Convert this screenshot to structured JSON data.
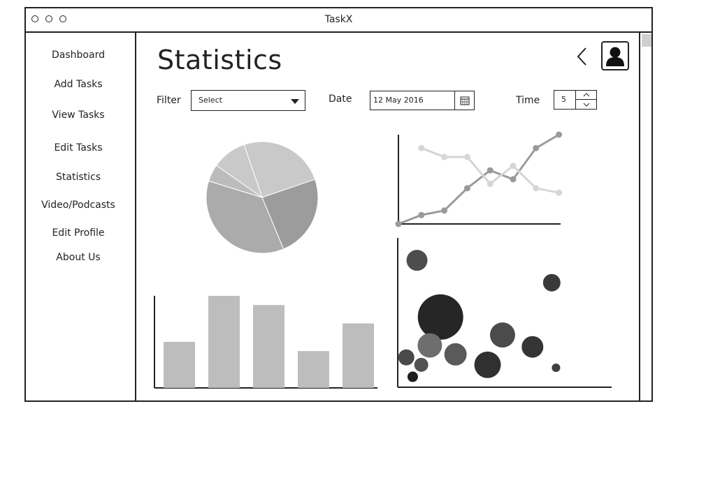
{
  "window": {
    "title": "TaskX"
  },
  "sidebar": {
    "items": [
      {
        "label": "Dashboard"
      },
      {
        "label": "Add Tasks"
      },
      {
        "label": "View Tasks"
      },
      {
        "label": "Edit Tasks"
      },
      {
        "label": "Statistics"
      },
      {
        "label": "Video/Podcasts"
      },
      {
        "label": "Edit Profile"
      },
      {
        "label": "About Us"
      }
    ]
  },
  "main": {
    "title": "Statistics",
    "filter": {
      "label": "Filter",
      "value": "Select"
    },
    "date": {
      "label": "Date",
      "value": "12 May 2016"
    },
    "time": {
      "label": "Time",
      "value": "5"
    }
  },
  "icons": {
    "back": "chevron-left-icon",
    "avatar": "user-icon",
    "calendar": "calendar-icon",
    "up": "caret-up-icon",
    "down": "caret-down-icon"
  },
  "colors": {
    "pie": [
      "#c9c9c9",
      "#9c9c9c",
      "#ababab",
      "#bcbcbc"
    ],
    "bar": "#bdbdbd",
    "line1": "#9a9a9a",
    "line2": "#d6d6d6"
  },
  "chart_data": [
    {
      "type": "pie",
      "values": [
        25,
        24,
        36,
        5,
        10
      ]
    },
    {
      "type": "line",
      "series": [
        {
          "values": [
            0,
            4,
            6,
            16,
            24,
            20,
            34,
            40
          ]
        },
        {
          "values": [
            34,
            30,
            30,
            18,
            26,
            16,
            14
          ]
        }
      ]
    },
    {
      "type": "bar",
      "values": [
        50,
        100,
        90,
        40,
        70
      ],
      "ylim": [
        0,
        100
      ]
    },
    {
      "type": "scatter",
      "points": [
        {
          "x": 9,
          "y": 85,
          "r": 3
        },
        {
          "x": 72,
          "y": 70,
          "r": 2.5
        },
        {
          "x": 20,
          "y": 47,
          "r": 6.5
        },
        {
          "x": 15,
          "y": 28,
          "r": 3.5
        },
        {
          "x": 27,
          "y": 22,
          "r": 3.2
        },
        {
          "x": 4,
          "y": 20,
          "r": 2.3
        },
        {
          "x": 11,
          "y": 15,
          "r": 2
        },
        {
          "x": 7,
          "y": 7,
          "r": 1.5
        },
        {
          "x": 49,
          "y": 35,
          "r": 3.6
        },
        {
          "x": 63,
          "y": 27,
          "r": 3.1
        },
        {
          "x": 42,
          "y": 15,
          "r": 3.8
        },
        {
          "x": 74,
          "y": 13,
          "r": 1.2
        }
      ],
      "xlim": [
        0,
        100
      ],
      "ylim": [
        0,
        100
      ]
    }
  ]
}
